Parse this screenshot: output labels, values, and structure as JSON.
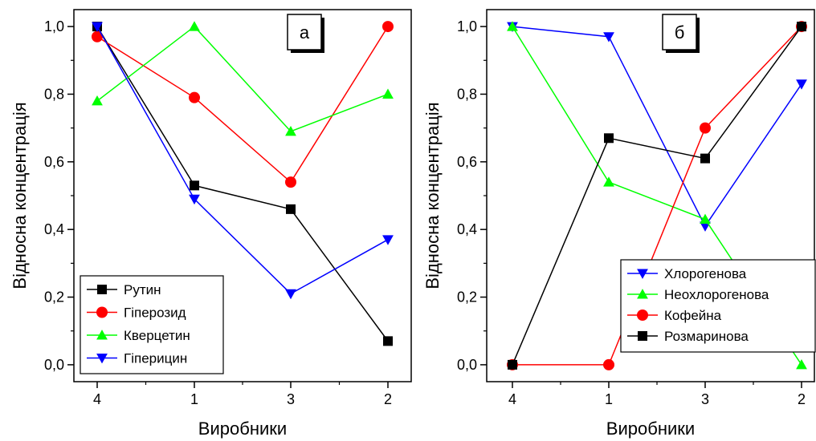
{
  "chart_data": [
    {
      "type": "line",
      "panel_label": "а",
      "categories": [
        "4",
        "1",
        "3",
        "2"
      ],
      "xlabel": "Виробники",
      "ylabel": "Відносна концентрація",
      "ylim": [
        -0.05,
        1.05
      ],
      "yticks": [
        "0,0",
        "0,2",
        "0,4",
        "0,6",
        "0,8",
        "1,0"
      ],
      "ytick_values": [
        0.0,
        0.2,
        0.4,
        0.6,
        0.8,
        1.0
      ],
      "legend_position": "bottom-left",
      "series": [
        {
          "name": "Рутин",
          "color": "#000000",
          "marker": "square",
          "values": [
            1.0,
            0.53,
            0.46,
            0.07
          ]
        },
        {
          "name": "Гіперозид",
          "color": "#ff0000",
          "marker": "circle",
          "values": [
            0.97,
            0.79,
            0.54,
            1.0
          ]
        },
        {
          "name": "Кверцетин",
          "color": "#00ff00",
          "marker": "triangle-up",
          "values": [
            0.78,
            1.0,
            0.69,
            0.8
          ]
        },
        {
          "name": "Гіперицин",
          "color": "#0000ff",
          "marker": "triangle-down",
          "values": [
            1.0,
            0.49,
            0.21,
            0.37
          ]
        }
      ]
    },
    {
      "type": "line",
      "panel_label": "б",
      "categories": [
        "4",
        "1",
        "3",
        "2"
      ],
      "xlabel": "Виробники",
      "ylabel": "Відносна концентрація",
      "ylim": [
        -0.05,
        1.05
      ],
      "yticks": [
        "0,0",
        "0,2",
        "0,4",
        "0,6",
        "0,8",
        "1,0"
      ],
      "ytick_values": [
        0.0,
        0.2,
        0.4,
        0.6,
        0.8,
        1.0
      ],
      "legend_position": "bottom-right",
      "series": [
        {
          "name": "Хлорогенова",
          "color": "#0000ff",
          "marker": "triangle-down",
          "values": [
            1.0,
            0.97,
            0.41,
            0.83
          ]
        },
        {
          "name": "Неохлорогенова",
          "color": "#00ff00",
          "marker": "triangle-up",
          "values": [
            1.0,
            0.54,
            0.43,
            0.0
          ]
        },
        {
          "name": "Кофейна",
          "color": "#ff0000",
          "marker": "circle",
          "values": [
            0.0,
            0.0,
            0.7,
            1.0
          ]
        },
        {
          "name": "Розмаринова",
          "color": "#000000",
          "marker": "square",
          "values": [
            0.0,
            0.67,
            0.61,
            1.0
          ]
        }
      ]
    }
  ]
}
